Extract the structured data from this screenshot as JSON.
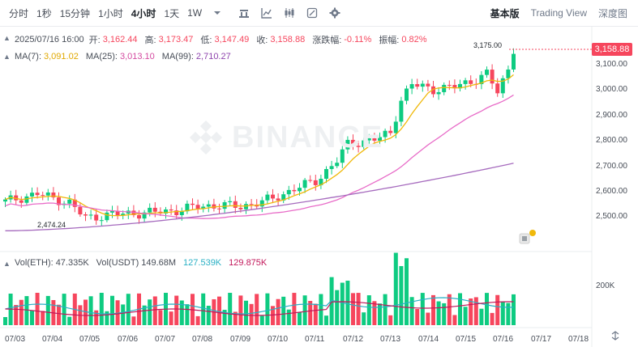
{
  "toolbar": {
    "intervals": [
      "分时",
      "1秒",
      "15分钟",
      "1小时",
      "4小时",
      "1天",
      "1W"
    ],
    "active_interval": "4小时",
    "icons": [
      "chevron-down-icon",
      "candle-type-icon",
      "indicator-icon",
      "candlestick-icon",
      "drawing-icon",
      "settings-icon"
    ],
    "views": [
      "基本版",
      "Trading View",
      "深度图"
    ],
    "active_view": "基本版"
  },
  "ohlc": {
    "date": "2025/07/16 16:00",
    "open_label": "开:",
    "open": "3,162.44",
    "high_label": "高:",
    "high": "3,173.47",
    "low_label": "低:",
    "low": "3,147.49",
    "close_label": "收:",
    "close": "3,158.88",
    "change_label": "涨跌幅:",
    "change": "-0.11%",
    "amp_label": "振幅:",
    "amp": "0.82%"
  },
  "ma": {
    "ma7_label": "MA(7):",
    "ma7": "3,091.02",
    "ma25_label": "MA(25):",
    "ma25": "3,013.10",
    "ma99_label": "MA(99):",
    "ma99": "2,710.27"
  },
  "volume": {
    "vol_eth_label": "Vol(ETH):",
    "vol_eth": "47.335K",
    "vol_usdt_label": "Vol(USDT)",
    "vol_usdt": "149.68M",
    "vol_ma1": "127.539K",
    "vol_ma2": "129.875K",
    "axis_label": "200K"
  },
  "price_axis": [
    "3,100.00",
    "3,000.00",
    "2,900.00",
    "2,800.00",
    "2,700.00",
    "2,600.00",
    "2,500.00"
  ],
  "current_price": "3,158.88",
  "annotations": {
    "high": "3,175.00",
    "low": "2,474.24"
  },
  "x_axis": [
    "07/03",
    "07/04",
    "07/05",
    "07/06",
    "07/07",
    "07/08",
    "07/09",
    "07/10",
    "07/11",
    "07/12",
    "07/13",
    "07/14",
    "07/15",
    "07/16",
    "07/17",
    "07/18"
  ],
  "watermark": "BINANCE",
  "colors": {
    "up": "#0ecb81",
    "down": "#f6465d",
    "ma7": "#f0b90b",
    "ma25": "#e86cc8",
    "ma99": "#a66bbe"
  }
}
